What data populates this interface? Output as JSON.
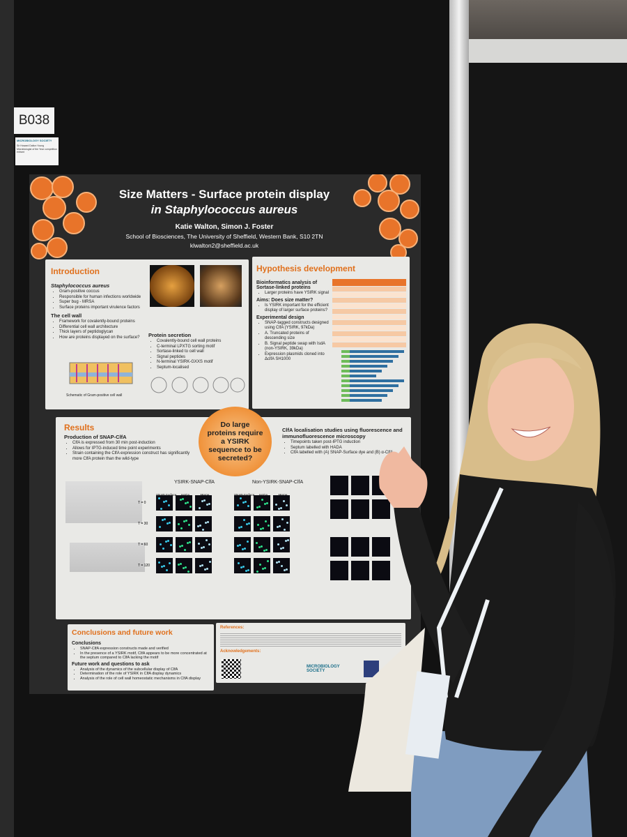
{
  "booth_label": "B038",
  "badge": {
    "logo": "MICROBIOLOGY SOCIETY",
    "note": "Sir Howard Dalton Young Microbiologist of the Year competition entrant"
  },
  "poster": {
    "title_line1": "Size Matters - Surface protein display",
    "title_line2": "in Staphylococcus aureus",
    "authors": "Katie Walton, Simon J. Foster",
    "affiliation": "School of Biosciences, The University of Sheffield, Western Bank, S10 2TN",
    "email": "klwalton2@sheffield.ac.uk",
    "introduction": {
      "heading": "Introduction",
      "blocks": [
        {
          "heading": "Staphylococcus aureus",
          "items": [
            "Gram-positive coccus",
            "Responsible for human infections worldwide",
            "Super bug - MRSA",
            "Surface proteins important virulence factors"
          ]
        },
        {
          "heading": "The cell wall",
          "items": [
            "Framework for covalently-bound proteins",
            "Differential cell wall architecture",
            "Thick layers of peptidoglycan",
            "How are proteins displayed on the surface?"
          ]
        }
      ],
      "protein_secretion": {
        "heading": "Protein secretion",
        "items": [
          "Covalently-bound cell wall proteins",
          "C-terminal LPXTG sorting motif",
          "Sortase-linked to cell wall",
          "Signal peptides",
          "N-terminal YSIRK-GXXS motif",
          "Septum-localised"
        ]
      },
      "caption": "Schematic of Gram-positive cell wall"
    },
    "hypothesis": {
      "heading": "Hypothesis development",
      "analysis": "Bioinformatics analysis of Sortase-linked proteins",
      "analysis_items": [
        "Larger proteins have YSIRK signal"
      ],
      "aims": "Aims: Does size matter?",
      "aims_items": [
        "Is YSIRK important for the efficient display of larger surface proteins?"
      ],
      "design": "Experimental design",
      "design_items": [
        "SNAP-tagged constructs designed using ClfA (YSIRK, 97kDa)",
        "A. Truncated proteins of descending size",
        "B. Signal peptide swap with IsdA (non-YSIRK, 39kDa)",
        "Expression plasmids cloned into ΔclfA SH1000"
      ]
    },
    "results": {
      "heading": "Results",
      "production": "Production of SNAP-ClfA",
      "production_items": [
        "ClfA is expressed from 30 min post-induction",
        "Allows for IPTG-induced time point experiments",
        "Strain containing the ClfA expression construct has significantly more ClfA protein than the wild-type"
      ],
      "question": "Do large proteins require a YSIRK sequence to be secreted?",
      "localisation": "ClfA localisation studies using fluorescence and immunofluorescence microscopy",
      "localisation_items": [
        "Timepoints taken post-IPTG induction",
        "Septum labelled with HADA",
        "ClfA labelled with (A) SNAP-Surface dye and (B) α-ClfA"
      ],
      "construct_a": "YSIRK-SNAP-ClfA",
      "construct_b": "Non-YSIRK-SNAP-ClfA",
      "channels": [
        "SNAP-Surface",
        "HADA",
        "Merge"
      ],
      "timepoints": [
        "T = 0",
        "T = 30",
        "T = 60",
        "T = 120"
      ]
    },
    "conclusions": {
      "heading": "Conclusions and future work",
      "sub1": "Conclusions",
      "items1": [
        "SNAP-ClfA expression constructs made and verified",
        "In the presence of a YSIRK motif, ClfA appears to be more concentrated at the septum compared to ClfA lacking the motif"
      ],
      "sub2": "Future work and questions to ask",
      "items2": [
        "Analysis of the dynamics of the subcellular display of ClfA",
        "Determination of the role of YSIRK in ClfA display dynamics",
        "Analysis of the role of cell wall homeostatic mechanisms in ClfA display"
      ]
    },
    "references": "References:",
    "acknowledgements": "Acknowledgements:",
    "society": "MICROBIOLOGY SOCIETY"
  }
}
